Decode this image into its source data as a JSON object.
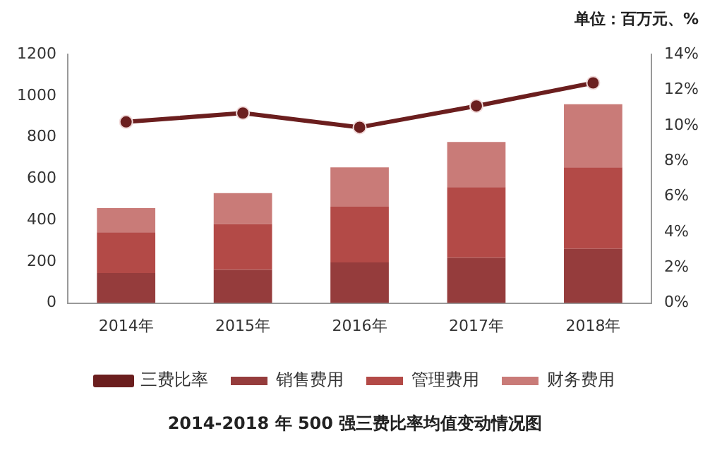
{
  "chart_data": {
    "type": "bar",
    "title": "2014-2018 年 500 强三费比率均值变动情况图",
    "annotations": [
      "单位：百万元、%"
    ],
    "categories": [
      "2014年",
      "2015年",
      "2016年",
      "2017年",
      "2018年"
    ],
    "stacked": true,
    "series": [
      {
        "name": "销售费用",
        "color": "#953c3c",
        "values": [
          145,
          160,
          196,
          218,
          262
        ]
      },
      {
        "name": "管理费用",
        "color": "#b34a47",
        "values": [
          197,
          221,
          269,
          342,
          393
        ]
      },
      {
        "name": "财务费用",
        "color": "#c97b78",
        "values": [
          116,
          150,
          190,
          218,
          305
        ]
      },
      {
        "name": "三费比率",
        "type": "line",
        "axis": "y2",
        "color": "#6b1e1e",
        "marker": "circle",
        "values": [
          10.2,
          10.7,
          9.9,
          11.1,
          12.4
        ]
      }
    ],
    "ylim": [
      0,
      1200
    ],
    "yticks": [
      0,
      200,
      400,
      600,
      800,
      1000,
      1200
    ],
    "y2lim": [
      0,
      14
    ],
    "y2ticks": [
      {
        "value": 0,
        "label": "0%"
      },
      {
        "value": 2,
        "label": "2%"
      },
      {
        "value": 4,
        "label": "4%"
      },
      {
        "value": 6,
        "label": "6%"
      },
      {
        "value": 8,
        "label": "8%"
      },
      {
        "value": 10,
        "label": "10%"
      },
      {
        "value": 12,
        "label": "12%"
      },
      {
        "value": 14,
        "label": "14%"
      }
    ],
    "grid": false,
    "legend": "bottom"
  }
}
